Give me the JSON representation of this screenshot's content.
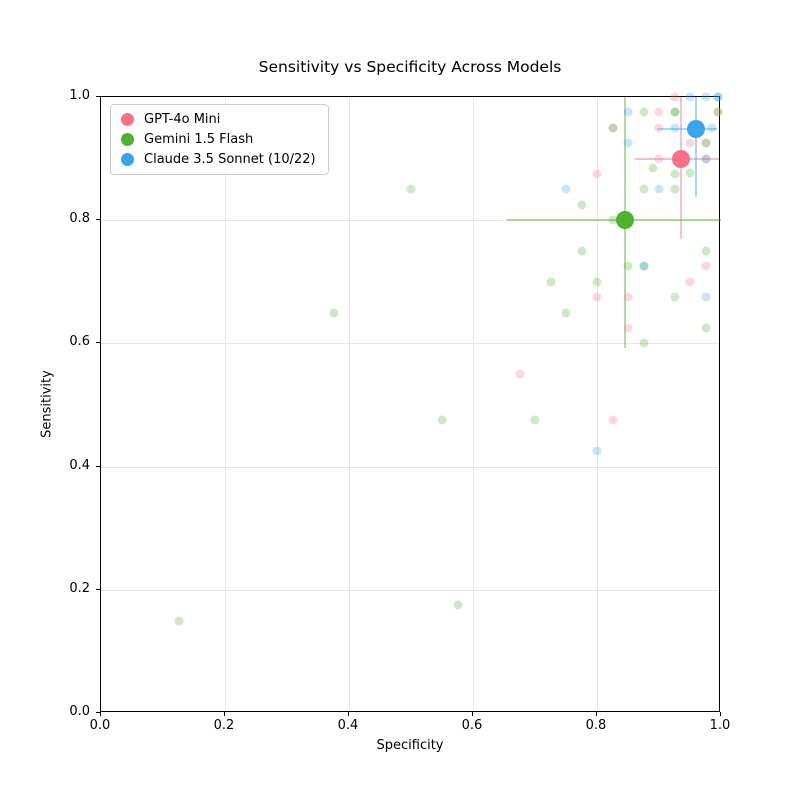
{
  "figure": {
    "title": "Sensitivity vs Specificity Across Models"
  },
  "chart_data": {
    "type": "scatter",
    "title": "Sensitivity vs Specificity Across Models",
    "xlabel": "Specificity",
    "ylabel": "Sensitivity",
    "xlim": [
      0.0,
      1.0
    ],
    "ylim": [
      0.0,
      1.0
    ],
    "x_ticks": [
      "0.0",
      "0.2",
      "0.4",
      "0.6",
      "0.8",
      "1.0"
    ],
    "y_ticks": [
      "0.0",
      "0.2",
      "0.4",
      "0.6",
      "0.8",
      "1.0"
    ],
    "grid": true,
    "legend_position": "upper left",
    "point_opacity": 0.28,
    "errorbar_opacity": 0.45,
    "series": [
      {
        "name": "GPT-4o Mini",
        "color": "#f77189",
        "mean": {
          "x": 0.935,
          "y": 0.9
        },
        "x_err_range": [
          0.862,
          0.997
        ],
        "y_err_range": [
          0.769,
          1.0
        ],
        "points": [
          [
            0.925,
            1.0
          ],
          [
            0.9,
            0.975
          ],
          [
            0.9,
            0.95
          ],
          [
            0.825,
            0.95
          ],
          [
            0.995,
            0.975
          ],
          [
            0.95,
            0.925
          ],
          [
            0.975,
            0.925
          ],
          [
            0.9,
            0.9
          ],
          [
            0.975,
            0.9
          ],
          [
            0.8,
            0.875
          ],
          [
            0.975,
            0.725
          ],
          [
            0.95,
            0.7
          ],
          [
            0.8,
            0.675
          ],
          [
            0.85,
            0.675
          ],
          [
            0.85,
            0.625
          ],
          [
            0.675,
            0.55
          ],
          [
            0.825,
            0.475
          ]
        ]
      },
      {
        "name": "Gemini 1.5 Flash",
        "color": "#50b131",
        "mean": {
          "x": 0.845,
          "y": 0.801
        },
        "x_err_range": [
          0.655,
          1.0
        ],
        "y_err_range": [
          0.593,
          1.0
        ],
        "points": [
          [
            0.875,
            0.975
          ],
          [
            0.925,
            0.975
          ],
          [
            0.925,
            0.975
          ],
          [
            0.825,
            0.95
          ],
          [
            0.995,
            0.975
          ],
          [
            0.975,
            0.925
          ],
          [
            0.89,
            0.885
          ],
          [
            0.95,
            0.877
          ],
          [
            0.925,
            0.875
          ],
          [
            0.875,
            0.85
          ],
          [
            0.925,
            0.85
          ],
          [
            0.5,
            0.85
          ],
          [
            0.775,
            0.825
          ],
          [
            0.825,
            0.8
          ],
          [
            0.775,
            0.75
          ],
          [
            0.975,
            0.75
          ],
          [
            0.85,
            0.725
          ],
          [
            0.875,
            0.725
          ],
          [
            0.725,
            0.7
          ],
          [
            0.8,
            0.7
          ],
          [
            0.925,
            0.675
          ],
          [
            0.75,
            0.65
          ],
          [
            0.375,
            0.65
          ],
          [
            0.975,
            0.625
          ],
          [
            0.875,
            0.6
          ],
          [
            0.55,
            0.475
          ],
          [
            0.7,
            0.475
          ],
          [
            0.575,
            0.175
          ],
          [
            0.125,
            0.15
          ]
        ]
      },
      {
        "name": "Claude 3.5 Sonnet (10/22)",
        "color": "#3ba3ec",
        "mean": {
          "x": 0.96,
          "y": 0.948
        },
        "x_err_range": [
          0.897,
          0.993
        ],
        "y_err_range": [
          0.837,
          1.0
        ],
        "points": [
          [
            0.95,
            1.0
          ],
          [
            0.975,
            1.0
          ],
          [
            0.995,
            1.0
          ],
          [
            0.995,
            1.0
          ],
          [
            0.85,
            0.975
          ],
          [
            0.925,
            0.95
          ],
          [
            0.985,
            0.95
          ],
          [
            0.85,
            0.925
          ],
          [
            0.975,
            0.9
          ],
          [
            0.75,
            0.85
          ],
          [
            0.9,
            0.85
          ],
          [
            0.875,
            0.725
          ],
          [
            0.975,
            0.675
          ],
          [
            0.8,
            0.425
          ]
        ]
      }
    ]
  }
}
